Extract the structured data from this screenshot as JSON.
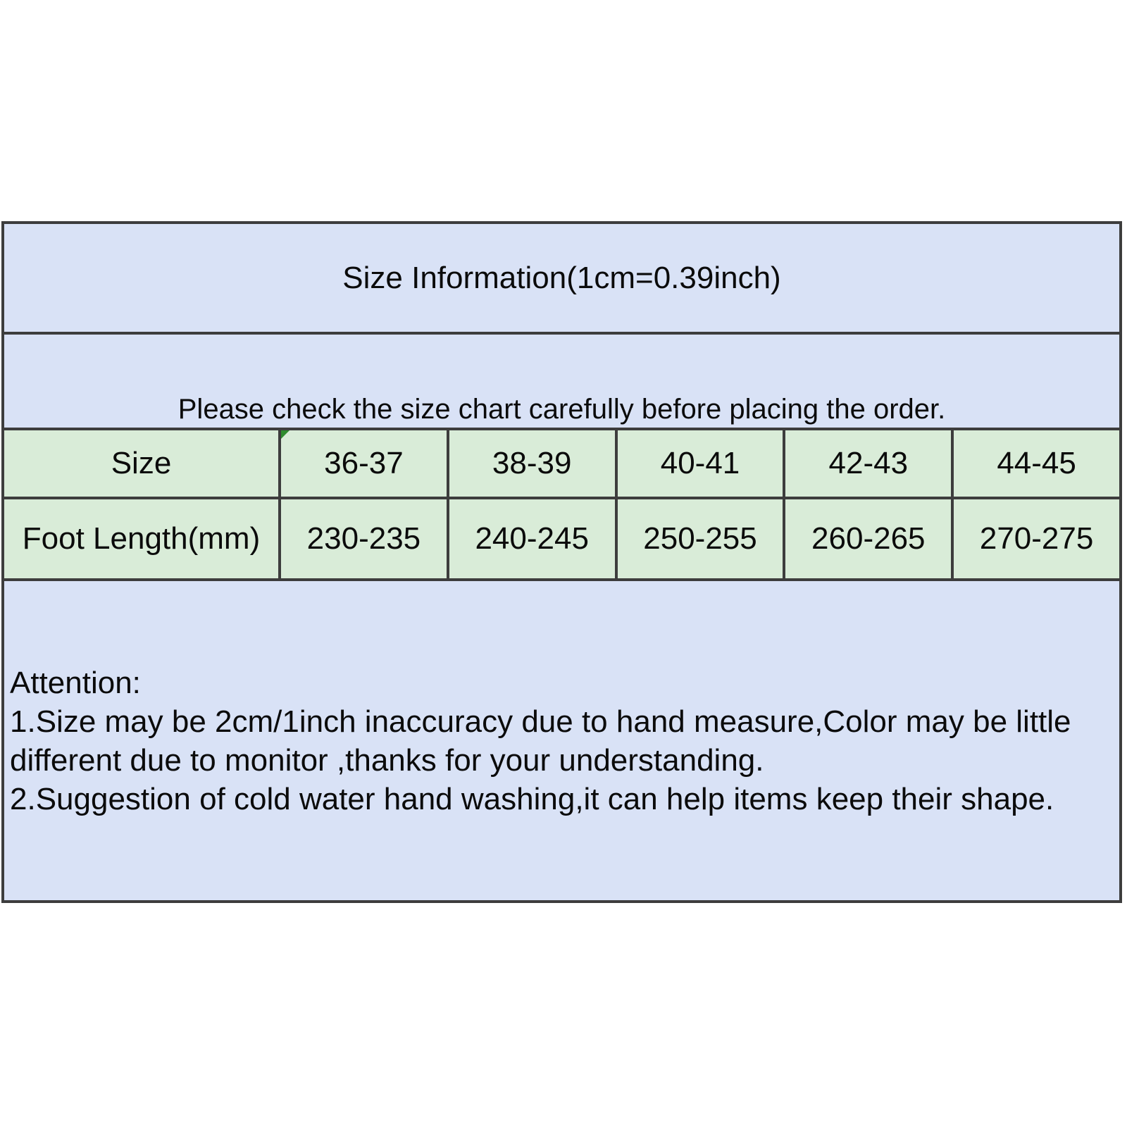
{
  "colors": {
    "page_bg": "#ffffff",
    "blue_bg": "#d9e2f6",
    "green_bg": "#d9ecd8",
    "border": "#3d3d3d",
    "text": "#0b0b0b",
    "corner_marker_green": "#2e8b2e"
  },
  "size_chart": {
    "title": "Size Information(1cm=0.39inch)",
    "notice": "Please check the size chart carefully before placing the order.",
    "rows": {
      "size": {
        "label": "Size",
        "values": [
          "36-37",
          "38-39",
          "40-41",
          "42-43",
          "44-45"
        ]
      },
      "foot_length": {
        "label": "Foot Length(mm)",
        "values": [
          "230-235",
          "240-245",
          "250-255",
          "260-265",
          "270-275"
        ]
      }
    },
    "attention": {
      "heading": "Attention:",
      "note1": "1.Size may be 2cm/1inch inaccuracy due to hand measure,Color may be little different due to monitor ,thanks for your understanding.",
      "note2": "2.Suggestion of cold water hand washing,it can help items keep their shape."
    }
  },
  "chart_data": {
    "type": "table",
    "title": "Size Information(1cm=0.39inch)",
    "columns": [
      "Size",
      "36-37",
      "38-39",
      "40-41",
      "42-43",
      "44-45"
    ],
    "rows": [
      [
        "Foot Length(mm)",
        "230-235",
        "240-245",
        "250-255",
        "260-265",
        "270-275"
      ]
    ],
    "notes": [
      "Please check the size chart carefully before placing the order.",
      "1.Size may be 2cm/1inch inaccuracy due to hand measure,Color may be little different due to monitor ,thanks for your understanding.",
      "2.Suggestion of cold water hand washing,it can help items keep their shape."
    ]
  }
}
